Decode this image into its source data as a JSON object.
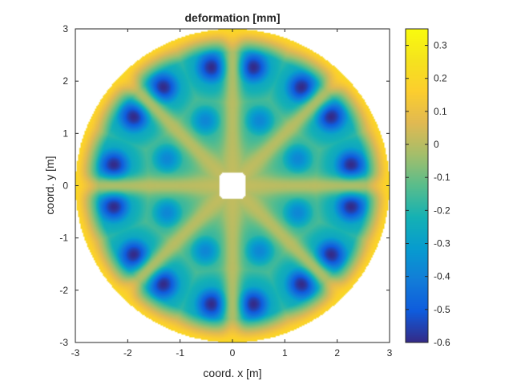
{
  "chart_data": {
    "type": "heatmap",
    "title": "deformation [mm]",
    "xlabel": "coord. x [m]",
    "ylabel": "coord. y [m]",
    "xlim": [
      -3,
      3
    ],
    "ylim": [
      -3,
      3
    ],
    "x_ticks": [
      "-3",
      "-2",
      "-1",
      "0",
      "1",
      "2",
      "3"
    ],
    "y_ticks": [
      "-3",
      "-2",
      "-1",
      "0",
      "1",
      "2",
      "3"
    ],
    "colorbar": {
      "range": [
        -0.6,
        0.35
      ],
      "ticks": [
        "0.3",
        "0.2",
        "0.1",
        "0",
        "-0.1",
        "-0.2",
        "-0.3",
        "-0.4",
        "-0.5",
        "-0.6"
      ],
      "colormap": "parula"
    },
    "grid": false,
    "field": {
      "domain": "annular disk",
      "outer_radius": 3.0,
      "inner_hole_half_width": 0.25,
      "rim_value": 0.22,
      "spoke_value": 0.02,
      "spoke_count": 8,
      "lobe_count": 8,
      "outer_minimum_value": -0.6,
      "inner_minimum_value": -0.38
    }
  }
}
